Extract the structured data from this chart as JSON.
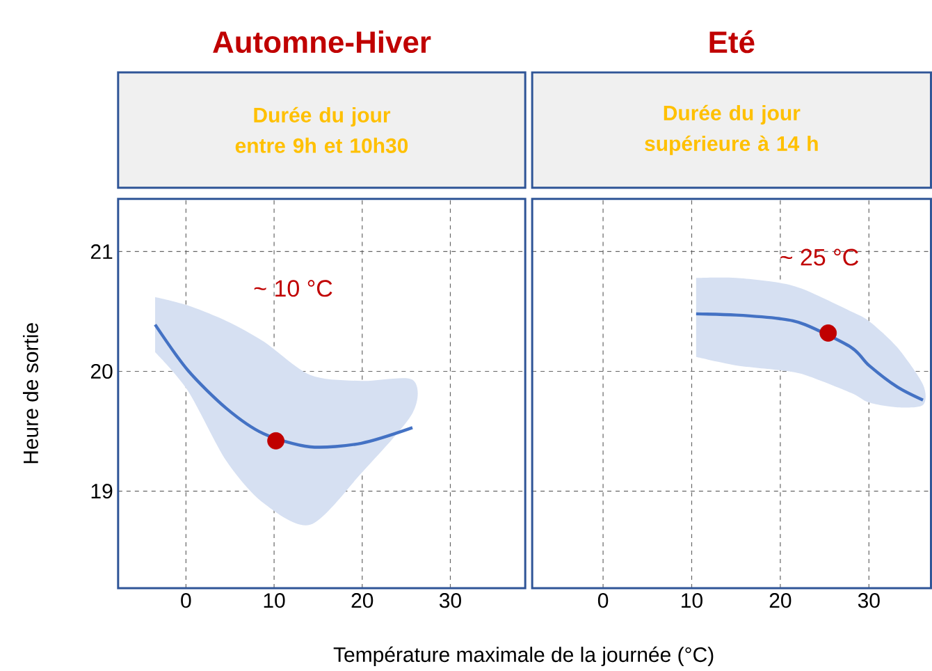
{
  "chart_data": [
    {
      "type": "line",
      "title": "Automne-Hiver",
      "subtitle": "Durée du jour entre 9h et 10h30",
      "ylabel": "Heure de sortie",
      "xlabel": "Température maximale de la journée (°C)",
      "xlim": [
        -7.7,
        38.5
      ],
      "ylim": [
        18.19,
        21.44
      ],
      "xticks": [
        0,
        10,
        20,
        30
      ],
      "yticks": [
        19,
        20,
        21
      ],
      "grid": true,
      "annotations": [
        "~ 10 °C"
      ],
      "series": [
        {
          "color": "#4472c4",
          "marker": "none",
          "x": [
            -3.5,
            0.2,
            4.6,
            8.8,
            14.1,
            19.9,
            25.7
          ],
          "values": [
            20.39,
            20.01,
            19.69,
            19.48,
            19.37,
            19.4,
            19.53
          ],
          "lower": [
            20.16,
            19.84,
            19.25,
            18.9,
            18.72,
            19.15,
            19.65
          ],
          "upper": [
            20.62,
            20.55,
            20.42,
            20.25,
            19.97,
            19.92,
            19.93
          ]
        },
        {
          "type": "scatter",
          "color": "#c00000",
          "marker": "circle",
          "x": [
            10.2
          ],
          "values": [
            19.42
          ]
        }
      ]
    },
    {
      "type": "line",
      "title": "Eté",
      "subtitle": "Durée du jour supérieure à 14 h",
      "xlim": [
        -8,
        37
      ],
      "ylim": [
        18.19,
        21.44
      ],
      "xticks": [
        0,
        10,
        20,
        30
      ],
      "yticks": [
        19,
        20,
        21
      ],
      "grid": true,
      "tick_labels": "x",
      "annotations": [
        "~ 25 °C"
      ],
      "series": [
        {
          "color": "#4472c4",
          "marker": "none",
          "x": [
            10.5,
            15.0,
            19.9,
            22.8,
            28.0,
            30.0,
            33.2,
            36.1
          ],
          "values": [
            20.48,
            20.47,
            20.44,
            20.39,
            20.2,
            20.05,
            19.87,
            19.76
          ],
          "lower": [
            20.12,
            20.05,
            20.01,
            19.97,
            19.82,
            19.74,
            19.7,
            19.72
          ],
          "upper": [
            20.78,
            20.78,
            20.74,
            20.68,
            20.5,
            20.42,
            20.2,
            19.89
          ]
        },
        {
          "type": "scatter",
          "color": "#c00000",
          "marker": "circle",
          "x": [
            25.4
          ],
          "values": [
            20.32
          ]
        }
      ]
    }
  ]
}
